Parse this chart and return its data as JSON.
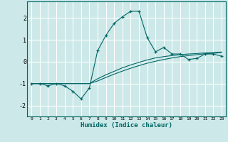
{
  "xlabel": "Humidex (Indice chaleur)",
  "bg_color": "#cce8e8",
  "grid_color": "#ffffff",
  "line_color": "#006666",
  "x_data": [
    0,
    1,
    2,
    3,
    4,
    5,
    6,
    7,
    8,
    9,
    10,
    11,
    12,
    13,
    14,
    15,
    16,
    17,
    18,
    19,
    20,
    21,
    22,
    23
  ],
  "y_main": [
    -1.0,
    -1.0,
    -1.1,
    -1.0,
    -1.1,
    -1.35,
    -1.7,
    -1.2,
    0.5,
    1.2,
    1.75,
    2.05,
    2.3,
    2.3,
    1.1,
    0.45,
    0.65,
    0.35,
    0.35,
    0.1,
    0.15,
    0.35,
    0.35,
    0.25
  ],
  "y_upper": [
    -1.0,
    -1.0,
    -1.0,
    -1.0,
    -1.0,
    -1.0,
    -1.0,
    -1.0,
    -0.78,
    -0.6,
    -0.44,
    -0.28,
    -0.15,
    -0.03,
    0.08,
    0.17,
    0.23,
    0.28,
    0.32,
    0.35,
    0.37,
    0.4,
    0.42,
    0.44
  ],
  "y_lower": [
    -1.0,
    -1.0,
    -1.0,
    -1.0,
    -1.0,
    -1.0,
    -1.0,
    -1.0,
    -0.88,
    -0.72,
    -0.57,
    -0.43,
    -0.3,
    -0.18,
    -0.07,
    0.02,
    0.1,
    0.17,
    0.23,
    0.28,
    0.32,
    0.36,
    0.38,
    0.42
  ],
  "ylim": [
    -2.5,
    2.75
  ],
  "yticks": [
    -2,
    -1,
    0,
    1,
    2
  ],
  "xtick_labels": [
    "0",
    "1",
    "2",
    "3",
    "4",
    "5",
    "6",
    "7",
    "8",
    "9",
    "10",
    "11",
    "12",
    "13",
    "14",
    "15",
    "16",
    "17",
    "18",
    "19",
    "20",
    "21",
    "22",
    "23"
  ]
}
